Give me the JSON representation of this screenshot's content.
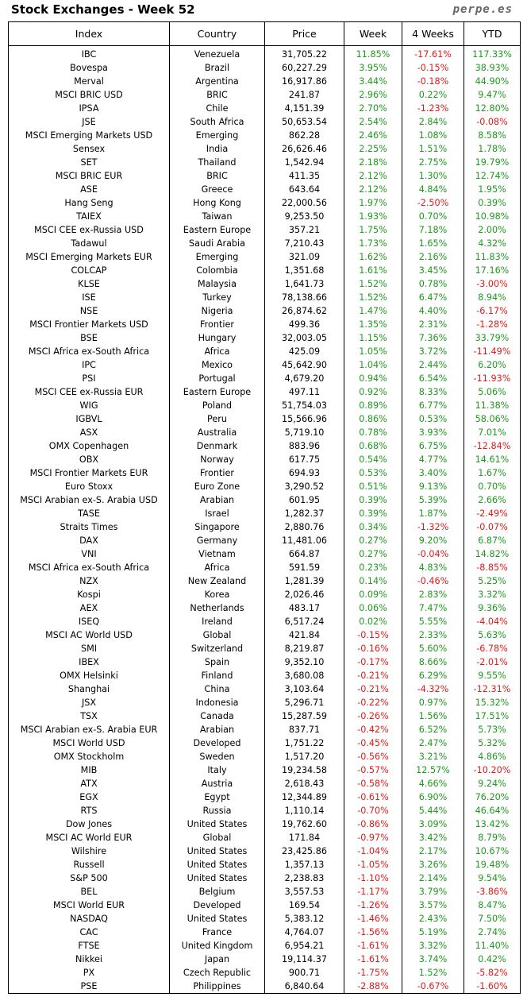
{
  "header": {
    "title": "Stock Exchanges - Week 52",
    "site": "perpe.es"
  },
  "colors": {
    "positive": "#1e9a1e",
    "negative": "#e01a1a"
  },
  "columns": [
    "Index",
    "Country",
    "Price",
    "Week",
    "4 Weeks",
    "YTD"
  ],
  "rows": [
    [
      "IBC",
      "Venezuela",
      "31,705.22",
      "11.85%",
      "-17.61%",
      "117.33%"
    ],
    [
      "Bovespa",
      "Brazil",
      "60,227.29",
      "3.95%",
      "-0.15%",
      "38.93%"
    ],
    [
      "Merval",
      "Argentina",
      "16,917.86",
      "3.44%",
      "-0.18%",
      "44.90%"
    ],
    [
      "MSCI BRIC USD",
      "BRIC",
      "241.87",
      "2.96%",
      "0.22%",
      "9.47%"
    ],
    [
      "IPSA",
      "Chile",
      "4,151.39",
      "2.70%",
      "-1.23%",
      "12.80%"
    ],
    [
      "JSE",
      "South Africa",
      "50,653.54",
      "2.54%",
      "2.84%",
      "-0.08%"
    ],
    [
      "MSCI Emerging Markets USD",
      "Emerging",
      "862.28",
      "2.46%",
      "1.08%",
      "8.58%"
    ],
    [
      "Sensex",
      "India",
      "26,626.46",
      "2.25%",
      "1.51%",
      "1.78%"
    ],
    [
      "SET",
      "Thailand",
      "1,542.94",
      "2.18%",
      "2.75%",
      "19.79%"
    ],
    [
      "MSCI BRIC EUR",
      "BRIC",
      "411.35",
      "2.12%",
      "1.30%",
      "12.74%"
    ],
    [
      "ASE",
      "Greece",
      "643.64",
      "2.12%",
      "4.84%",
      "1.95%"
    ],
    [
      "Hang Seng",
      "Hong Kong",
      "22,000.56",
      "1.97%",
      "-2.50%",
      "0.39%"
    ],
    [
      "TAIEX",
      "Taiwan",
      "9,253.50",
      "1.93%",
      "0.70%",
      "10.98%"
    ],
    [
      "MSCI CEE ex-Russia USD",
      "Eastern Europe",
      "357.21",
      "1.75%",
      "7.18%",
      "2.00%"
    ],
    [
      "Tadawul",
      "Saudi Arabia",
      "7,210.43",
      "1.73%",
      "1.65%",
      "4.32%"
    ],
    [
      "MSCI Emerging Markets EUR",
      "Emerging",
      "321.09",
      "1.62%",
      "2.16%",
      "11.83%"
    ],
    [
      "COLCAP",
      "Colombia",
      "1,351.68",
      "1.61%",
      "3.45%",
      "17.16%"
    ],
    [
      "KLSE",
      "Malaysia",
      "1,641.73",
      "1.52%",
      "0.78%",
      "-3.00%"
    ],
    [
      "ISE",
      "Turkey",
      "78,138.66",
      "1.52%",
      "6.47%",
      "8.94%"
    ],
    [
      "NSE",
      "Nigeria",
      "26,874.62",
      "1.47%",
      "4.40%",
      "-6.17%"
    ],
    [
      "MSCI Frontier Markets USD",
      "Frontier",
      "499.36",
      "1.35%",
      "2.31%",
      "-1.28%"
    ],
    [
      "BSE",
      "Hungary",
      "32,003.05",
      "1.15%",
      "7.36%",
      "33.79%"
    ],
    [
      "MSCI Africa ex-South Africa",
      "Africa",
      "425.09",
      "1.05%",
      "3.72%",
      "-11.49%"
    ],
    [
      "IPC",
      "Mexico",
      "45,642.90",
      "1.04%",
      "2.44%",
      "6.20%"
    ],
    [
      "PSI",
      "Portugal",
      "4,679.20",
      "0.94%",
      "6.54%",
      "-11.93%"
    ],
    [
      "MSCI CEE ex-Russia EUR",
      "Eastern Europe",
      "497.11",
      "0.92%",
      "8.33%",
      "5.06%"
    ],
    [
      "WIG",
      "Poland",
      "51,754.03",
      "0.89%",
      "6.77%",
      "11.38%"
    ],
    [
      "IGBVL",
      "Peru",
      "15,566.96",
      "0.86%",
      "0.53%",
      "58.06%"
    ],
    [
      "ASX",
      "Australia",
      "5,719.10",
      "0.78%",
      "3.93%",
      "7.01%"
    ],
    [
      "OMX Copenhagen",
      "Denmark",
      "883.96",
      "0.68%",
      "6.75%",
      "-12.84%"
    ],
    [
      "OBX",
      "Norway",
      "617.75",
      "0.54%",
      "4.77%",
      "14.61%"
    ],
    [
      "MSCI Frontier Markets EUR",
      "Frontier",
      "694.93",
      "0.53%",
      "3.40%",
      "1.67%"
    ],
    [
      "Euro Stoxx",
      "Euro Zone",
      "3,290.52",
      "0.51%",
      "9.13%",
      "0.70%"
    ],
    [
      "MSCI Arabian ex-S. Arabia USD",
      "Arabian",
      "601.95",
      "0.39%",
      "5.39%",
      "2.66%"
    ],
    [
      "TASE",
      "Israel",
      "1,282.37",
      "0.39%",
      "1.87%",
      "-2.49%"
    ],
    [
      "Straits Times",
      "Singapore",
      "2,880.76",
      "0.34%",
      "-1.32%",
      "-0.07%"
    ],
    [
      "DAX",
      "Germany",
      "11,481.06",
      "0.27%",
      "9.20%",
      "6.87%"
    ],
    [
      "VNI",
      "Vietnam",
      "664.87",
      "0.27%",
      "-0.04%",
      "14.82%"
    ],
    [
      "MSCI Africa ex-South Africa",
      "Africa",
      "591.59",
      "0.23%",
      "4.83%",
      "-8.85%"
    ],
    [
      "NZX",
      "New Zealand",
      "1,281.39",
      "0.14%",
      "-0.46%",
      "5.25%"
    ],
    [
      "Kospi",
      "Korea",
      "2,026.46",
      "0.09%",
      "2.83%",
      "3.32%"
    ],
    [
      "AEX",
      "Netherlands",
      "483.17",
      "0.06%",
      "7.47%",
      "9.36%"
    ],
    [
      "ISEQ",
      "Ireland",
      "6,517.24",
      "0.02%",
      "5.55%",
      "-4.04%"
    ],
    [
      "MSCI AC World USD",
      "Global",
      "421.84",
      "-0.15%",
      "2.33%",
      "5.63%"
    ],
    [
      "SMI",
      "Switzerland",
      "8,219.87",
      "-0.16%",
      "5.60%",
      "-6.78%"
    ],
    [
      "IBEX",
      "Spain",
      "9,352.10",
      "-0.17%",
      "8.66%",
      "-2.01%"
    ],
    [
      "OMX Helsinki",
      "Finland",
      "3,680.08",
      "-0.21%",
      "6.29%",
      "9.55%"
    ],
    [
      "Shanghai",
      "China",
      "3,103.64",
      "-0.21%",
      "-4.32%",
      "-12.31%"
    ],
    [
      "JSX",
      "Indonesia",
      "5,296.71",
      "-0.22%",
      "0.97%",
      "15.32%"
    ],
    [
      "TSX",
      "Canada",
      "15,287.59",
      "-0.26%",
      "1.56%",
      "17.51%"
    ],
    [
      "MSCI Arabian ex-S. Arabia EUR",
      "Arabian",
      "837.71",
      "-0.42%",
      "6.52%",
      "5.73%"
    ],
    [
      "MSCI World USD",
      "Developed",
      "1,751.22",
      "-0.45%",
      "2.47%",
      "5.32%"
    ],
    [
      "OMX Stockholm",
      "Sweden",
      "1,517.20",
      "-0.56%",
      "3.21%",
      "4.86%"
    ],
    [
      "MIB",
      "Italy",
      "19,234.58",
      "-0.57%",
      "12.57%",
      "-10.20%"
    ],
    [
      "ATX",
      "Austria",
      "2,618.43",
      "-0.58%",
      "4.66%",
      "9.24%"
    ],
    [
      "EGX",
      "Egypt",
      "12,344.89",
      "-0.61%",
      "6.90%",
      "76.20%"
    ],
    [
      "RTS",
      "Russia",
      "1,110.14",
      "-0.70%",
      "5.44%",
      "46.64%"
    ],
    [
      "Dow Jones",
      "United States",
      "19,762.60",
      "-0.86%",
      "3.09%",
      "13.42%"
    ],
    [
      "MSCI AC World EUR",
      "Global",
      "171.84",
      "-0.97%",
      "3.42%",
      "8.79%"
    ],
    [
      "Wilshire",
      "United States",
      "23,425.86",
      "-1.04%",
      "2.17%",
      "10.67%"
    ],
    [
      "Russell",
      "United States",
      "1,357.13",
      "-1.05%",
      "3.26%",
      "19.48%"
    ],
    [
      "S&P 500",
      "United States",
      "2,238.83",
      "-1.10%",
      "2.14%",
      "9.54%"
    ],
    [
      "BEL",
      "Belgium",
      "3,557.53",
      "-1.17%",
      "3.79%",
      "-3.86%"
    ],
    [
      "MSCI World EUR",
      "Developed",
      "169.54",
      "-1.26%",
      "3.57%",
      "8.47%"
    ],
    [
      "NASDAQ",
      "United States",
      "5,383.12",
      "-1.46%",
      "2.43%",
      "7.50%"
    ],
    [
      "CAC",
      "France",
      "4,764.07",
      "-1.56%",
      "5.19%",
      "2.74%"
    ],
    [
      "FTSE",
      "United Kingdom",
      "6,954.21",
      "-1.61%",
      "3.32%",
      "11.40%"
    ],
    [
      "Nikkei",
      "Japan",
      "19,114.37",
      "-1.61%",
      "3.74%",
      "0.42%"
    ],
    [
      "PX",
      "Czech Republic",
      "900.71",
      "-1.75%",
      "1.52%",
      "-5.82%"
    ],
    [
      "PSE",
      "Philippines",
      "6,840.64",
      "-2.88%",
      "-0.67%",
      "-1.60%"
    ]
  ]
}
